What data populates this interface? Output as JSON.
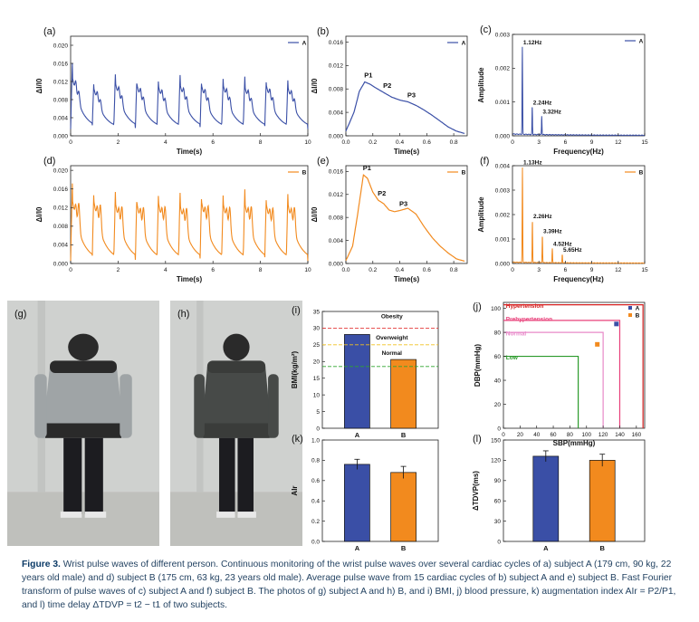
{
  "panels": {
    "a": {
      "label": "(a)",
      "legend": "A",
      "xlabel": "Time(s)",
      "ylabel": "ΔI/I0",
      "xticks": [
        "0",
        "2",
        "4",
        "6",
        "8",
        "10"
      ],
      "yticks": [
        "0.000",
        "0.004",
        "0.008",
        "0.012",
        "0.016",
        "0.020"
      ]
    },
    "b": {
      "label": "(b)",
      "legend": "A",
      "xlabel": "Time(s)",
      "ylabel": "ΔI/I0",
      "xticks": [
        "0.0",
        "0.2",
        "0.4",
        "0.6",
        "0.8"
      ],
      "yticks": [
        "0.000",
        "0.004",
        "0.008",
        "0.012",
        "0.016"
      ],
      "peaks": [
        "P1",
        "P2",
        "P3"
      ]
    },
    "c": {
      "label": "(c)",
      "legend": "A",
      "xlabel": "Frequency(Hz)",
      "ylabel": "Amplitude",
      "xticks": [
        "0",
        "3",
        "6",
        "9",
        "12",
        "15"
      ],
      "yticks": [
        "0.000",
        "0.001",
        "0.002",
        "0.003"
      ],
      "annotations": [
        "1.12Hz",
        "2.24Hz",
        "3.32Hz"
      ]
    },
    "d": {
      "label": "(d)",
      "legend": "B",
      "xlabel": "Time(s)",
      "ylabel": "ΔI/I0",
      "xticks": [
        "0",
        "2",
        "4",
        "6",
        "8",
        "10"
      ],
      "yticks": [
        "0.000",
        "0.004",
        "0.008",
        "0.012",
        "0.016",
        "0.020"
      ]
    },
    "e": {
      "label": "(e)",
      "legend": "B",
      "xlabel": "Time(s)",
      "ylabel": "ΔI/I0",
      "xticks": [
        "0.0",
        "0.2",
        "0.4",
        "0.6",
        "0.8"
      ],
      "yticks": [
        "0.000",
        "0.004",
        "0.008",
        "0.012",
        "0.016"
      ],
      "peaks": [
        "P1",
        "P2",
        "P3"
      ]
    },
    "f": {
      "label": "(f)",
      "legend": "B",
      "xlabel": "Frequency(Hz)",
      "ylabel": "Amplitude",
      "xticks": [
        "0",
        "3",
        "6",
        "9",
        "12",
        "15"
      ],
      "yticks": [
        "0.000",
        "0.001",
        "0.002",
        "0.003",
        "0.004"
      ],
      "annotations": [
        "1.13Hz",
        "2.26Hz",
        "3.39Hz",
        "4.52Hz",
        "5.65Hz"
      ]
    },
    "g": {
      "label": "(g)"
    },
    "h": {
      "label": "(h)"
    },
    "i": {
      "label": "(i)",
      "ylabel": "BMI(kg/m²)",
      "yticks": [
        "0",
        "5",
        "10",
        "15",
        "20",
        "25",
        "30",
        "35"
      ],
      "categories": [
        "A",
        "B"
      ],
      "zones": [
        "Obesity",
        "Overweight",
        "Normal"
      ]
    },
    "j": {
      "label": "(j)",
      "xlabel": "SBP(mmHg)",
      "ylabel": "DBP(mmHg)",
      "xticks": [
        "0",
        "20",
        "40",
        "60",
        "80",
        "100",
        "120",
        "140",
        "160"
      ],
      "yticks": [
        "0",
        "20",
        "40",
        "60",
        "80",
        "100"
      ],
      "zones": [
        "Hypertension",
        "Prehypertension",
        "Normal",
        "Low"
      ],
      "legend": [
        "A",
        "B"
      ]
    },
    "k": {
      "label": "(k)",
      "ylabel": "AIr",
      "yticks": [
        "0.0",
        "0.2",
        "0.4",
        "0.6",
        "0.8",
        "1.0"
      ],
      "categories": [
        "A",
        "B"
      ]
    },
    "l": {
      "label": "(l)",
      "ylabel": "ΔTDVP(ms)",
      "yticks": [
        "0",
        "30",
        "60",
        "90",
        "120",
        "150"
      ],
      "categories": [
        "A",
        "B"
      ]
    }
  },
  "colors": {
    "A": "#3a4fa6",
    "B": "#f28a1e",
    "axis": "#222222",
    "obesity": "#e23b3b",
    "overweight": "#f0c020",
    "normal": "#2fa52f",
    "hyper": "#d42020",
    "prehyper": "#e8407a",
    "normalBP": "#e889c9",
    "low": "#2b9a2b"
  },
  "chart_data": [
    {
      "type": "line",
      "panel": "a",
      "series": [
        {
          "name": "A",
          "x_range": [
            0,
            10
          ],
          "y_range": [
            0.0015,
            0.015
          ],
          "cycles": 11
        }
      ],
      "ylim": [
        0,
        0.022
      ],
      "xlim": [
        0,
        10
      ]
    },
    {
      "type": "line",
      "panel": "b",
      "series": [
        {
          "name": "A",
          "x": [
            0,
            0.06,
            0.1,
            0.14,
            0.18,
            0.22,
            0.28,
            0.34,
            0.4,
            0.46,
            0.52,
            0.58,
            0.64,
            0.7,
            0.76,
            0.82,
            0.88
          ],
          "y": [
            0.0008,
            0.004,
            0.0076,
            0.0092,
            0.0088,
            0.0082,
            0.0074,
            0.0066,
            0.0061,
            0.0058,
            0.0052,
            0.0044,
            0.0035,
            0.0025,
            0.0015,
            0.0008,
            0.0004
          ]
        }
      ],
      "xlim": [
        0,
        0.9
      ],
      "ylim": [
        0,
        0.017
      ]
    },
    {
      "type": "line",
      "panel": "c",
      "series": [
        {
          "name": "A",
          "peaks": [
            [
              1.12,
              0.0026
            ],
            [
              2.24,
              0.00082
            ],
            [
              3.32,
              0.00055
            ]
          ]
        }
      ],
      "xlim": [
        0,
        15
      ],
      "ylim": [
        0,
        0.003
      ]
    },
    {
      "type": "line",
      "panel": "d",
      "series": [
        {
          "name": "B",
          "x_range": [
            0,
            10
          ],
          "y_range": [
            0.0005,
            0.018
          ],
          "cycles": 11
        }
      ],
      "ylim": [
        0,
        0.021
      ],
      "xlim": [
        0,
        10
      ]
    },
    {
      "type": "line",
      "panel": "e",
      "series": [
        {
          "name": "B",
          "x": [
            0,
            0.05,
            0.09,
            0.13,
            0.16,
            0.2,
            0.24,
            0.28,
            0.32,
            0.36,
            0.4,
            0.46,
            0.52,
            0.58,
            0.64,
            0.7,
            0.76,
            0.82,
            0.88
          ],
          "y": [
            0.0005,
            0.003,
            0.009,
            0.0154,
            0.0148,
            0.0124,
            0.011,
            0.0104,
            0.0093,
            0.009,
            0.0092,
            0.0096,
            0.0086,
            0.0064,
            0.0045,
            0.003,
            0.0018,
            0.0008,
            0.0004
          ]
        }
      ],
      "xlim": [
        0,
        0.9
      ],
      "ylim": [
        0,
        0.017
      ]
    },
    {
      "type": "line",
      "panel": "f",
      "series": [
        {
          "name": "B",
          "peaks": [
            [
              1.13,
              0.0039
            ],
            [
              2.26,
              0.0017
            ],
            [
              3.39,
              0.0011
            ],
            [
              4.52,
              0.00058
            ],
            [
              5.65,
              0.00033
            ]
          ]
        }
      ],
      "xlim": [
        0,
        15
      ],
      "ylim": [
        0,
        0.004
      ]
    },
    {
      "type": "bar",
      "panel": "i",
      "categories": [
        "A",
        "B"
      ],
      "values": [
        28.1,
        20.6
      ],
      "ylim": [
        0,
        35
      ],
      "thresholds": [
        {
          "name": "Obesity",
          "y": 30
        },
        {
          "name": "Overweight",
          "y": 25
        },
        {
          "name": "Normal",
          "y": 18.5
        }
      ]
    },
    {
      "type": "scatter",
      "panel": "j",
      "series": [
        {
          "name": "A",
          "x": [
            136
          ],
          "y": [
            87
          ]
        },
        {
          "name": "B",
          "x": [
            113
          ],
          "y": [
            70
          ]
        }
      ],
      "xlim": [
        0,
        170
      ],
      "ylim": [
        0,
        105
      ],
      "zones": [
        {
          "name": "Hypertension",
          "sbp": 140,
          "dbp": 90
        },
        {
          "name": "Prehypertension",
          "sbp": 140,
          "dbp": 90
        },
        {
          "name": "Normal",
          "sbp": 120,
          "dbp": 80
        },
        {
          "name": "Low",
          "sbp": 90,
          "dbp": 60
        }
      ]
    },
    {
      "type": "bar",
      "panel": "k",
      "categories": [
        "A",
        "B"
      ],
      "values": [
        0.76,
        0.68
      ],
      "errors": [
        0.05,
        0.06
      ],
      "ylim": [
        0,
        1.0
      ]
    },
    {
      "type": "bar",
      "panel": "l",
      "categories": [
        "A",
        "B"
      ],
      "values": [
        126,
        120
      ],
      "errors": [
        8,
        9
      ],
      "ylim": [
        0,
        150
      ]
    }
  ],
  "caption": {
    "label": "Figure 3.",
    "text": " Wrist pulse waves of different person. Continuous monitoring of the wrist pulse waves over several cardiac cycles of a) subject A (179 cm, 90 kg, 22 years old male) and d) subject B (175 cm, 63 kg, 23 years old male). Average pulse wave from 15 cardiac cycles of b) subject A and e) subject B. Fast Fourier transform of pulse waves of c) subject A and f) subject B. The photos of g) subject A and h) B, and i) BMI, j) blood pressure, k) augmentation index AIr = P2/P1, and l) time delay ΔTDVP = t2 − t1 of two subjects."
  }
}
